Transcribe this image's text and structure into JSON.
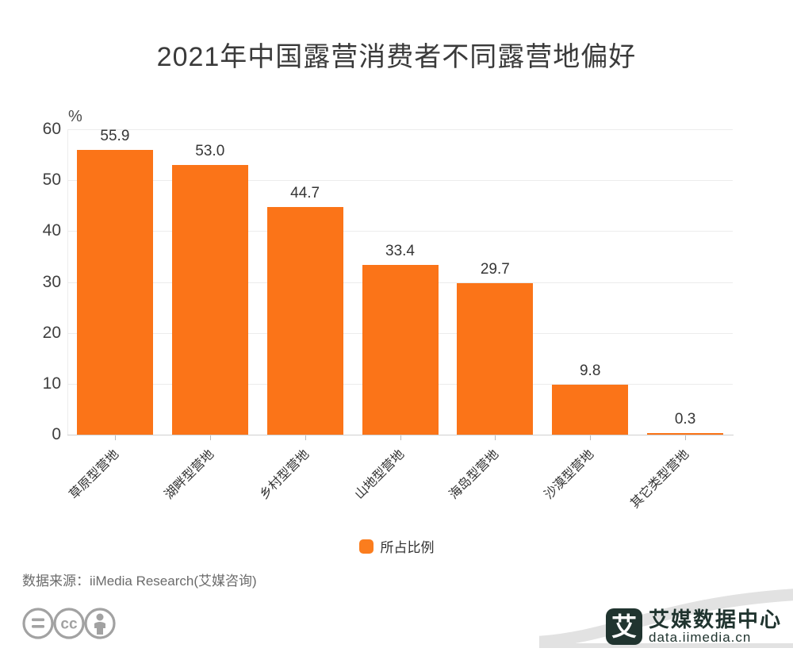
{
  "title": "2021年中国露营消费者不同露营地偏好",
  "chart_data": {
    "type": "bar",
    "title": "2021年中国露营消费者不同露营地偏好",
    "categories": [
      "草原型营地",
      "湖畔型营地",
      "乡村型营地",
      "山地型营地",
      "海岛型营地",
      "沙漠型营地",
      "其它类型营地"
    ],
    "values": [
      55.9,
      53.0,
      44.7,
      33.4,
      29.7,
      9.8,
      0.3
    ],
    "value_labels": [
      "55.9",
      "53.0",
      "44.7",
      "33.4",
      "29.7",
      "9.8",
      "0.3"
    ],
    "unit_label": "%",
    "ylim": [
      0,
      60
    ],
    "yticks": [
      0,
      10,
      20,
      30,
      40,
      50,
      60
    ],
    "grid": true,
    "bar_color": "#fb7418",
    "legend_position": "bottom",
    "legend": "所占比例"
  },
  "legend_label": "所占比例",
  "source_note": "数据来源：iiMedia Research(艾媒咨询)",
  "brand": {
    "logo_glyph": "艾",
    "name": "艾媒数据中心",
    "url": "data.iimedia.cn",
    "color": "#20342f"
  },
  "colors": {
    "bar": "#fb7418",
    "gridline": "#ececec",
    "axis_text": "#3f3f3f",
    "corner_band": "#e2e2e2",
    "cc_icon": "#a2a2a2"
  }
}
